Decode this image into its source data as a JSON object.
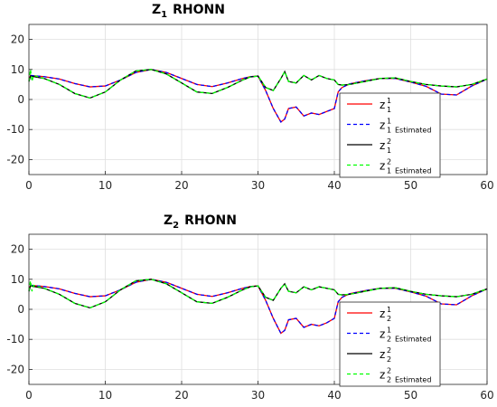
{
  "chart_data": [
    {
      "type": "line",
      "title_main": "Z",
      "title_sub": "1",
      "title_rest": "RHONN",
      "xlim": [
        0,
        60
      ],
      "ylim": [
        -25,
        25
      ],
      "xticks": [
        0,
        10,
        20,
        30,
        40,
        50,
        60
      ],
      "yticks": [
        -20,
        -10,
        0,
        10,
        20
      ],
      "grid": true,
      "legend_position": "center-right",
      "legend": [
        {
          "base": "z",
          "sup": "1",
          "sub": "1",
          "suffix": "",
          "color": "#ff0000",
          "dash": "solid"
        },
        {
          "base": "z",
          "sup": "1",
          "sub": "1",
          "suffix": "Estimated",
          "color": "#0000ff",
          "dash": "dashed"
        },
        {
          "base": "z",
          "sup": "2",
          "sub": "1",
          "suffix": "",
          "color": "#000000",
          "dash": "solid"
        },
        {
          "base": "z",
          "sup": "2",
          "sub": "1",
          "suffix": "Estimated",
          "color": "#00ff00",
          "dash": "dashed"
        }
      ],
      "series": [
        {
          "color": "#ff0000",
          "dash": "solid",
          "x": [
            0,
            0.2,
            2,
            4,
            6,
            8,
            10,
            12,
            14,
            16,
            18,
            20,
            22,
            24,
            26,
            28,
            29,
            30,
            31,
            32,
            33,
            33.5,
            34,
            35,
            36,
            37,
            38,
            39,
            40,
            40.5,
            41,
            42,
            44,
            46,
            48,
            50,
            52,
            54,
            56,
            58,
            60
          ],
          "y": [
            6,
            8,
            7.6,
            6.8,
            5.3,
            4.2,
            4.5,
            6.5,
            9,
            10,
            9,
            7,
            5,
            4.3,
            5.5,
            7,
            7.6,
            7.8,
            3,
            -3,
            -7.5,
            -6.5,
            -3,
            -2.5,
            -5.5,
            -4.5,
            -5,
            -4,
            -3,
            2.5,
            4,
            5.2,
            6.2,
            7,
            7,
            5.8,
            4.4,
            1.8,
            1.5,
            4.5,
            6.8
          ]
        },
        {
          "color": "#0000ff",
          "dash": "dashed",
          "x": [
            0,
            0.2,
            2,
            4,
            6,
            8,
            10,
            12,
            14,
            16,
            18,
            20,
            22,
            24,
            26,
            28,
            29,
            30,
            31,
            32,
            33,
            33.5,
            34,
            35,
            36,
            37,
            38,
            39,
            40,
            40.5,
            41,
            42,
            44,
            46,
            48,
            50,
            52,
            54,
            56,
            58,
            60
          ],
          "y": [
            6,
            8,
            7.6,
            6.8,
            5.3,
            4.2,
            4.5,
            6.5,
            9,
            10,
            9,
            7,
            5,
            4.3,
            5.5,
            7,
            7.6,
            7.8,
            3,
            -3,
            -7.5,
            -6.5,
            -3,
            -2.5,
            -5.5,
            -4.5,
            -5,
            -4,
            -3,
            2.5,
            4,
            5.2,
            6.2,
            7,
            7,
            5.8,
            4.4,
            1.8,
            1.5,
            4.5,
            6.8
          ]
        },
        {
          "color": "#000000",
          "dash": "solid",
          "x": [
            0,
            0.2,
            2,
            4,
            6,
            8,
            10,
            12,
            14,
            16,
            18,
            20,
            22,
            24,
            26,
            28,
            29,
            30,
            31,
            32,
            33,
            33.5,
            34,
            35,
            36,
            37,
            38,
            39,
            40,
            40.5,
            41,
            42,
            44,
            46,
            48,
            50,
            52,
            54,
            56,
            58,
            60
          ],
          "y": [
            6,
            7.8,
            7,
            5,
            2,
            0.5,
            2.5,
            6.5,
            9.5,
            10,
            8.5,
            5.5,
            2.5,
            2,
            4,
            6.5,
            7.5,
            7.8,
            4,
            3,
            7,
            9.3,
            6,
            5.5,
            8,
            6.5,
            8,
            7,
            6.5,
            5,
            4.8,
            5,
            6,
            7,
            7.2,
            6,
            5,
            4.5,
            4.2,
            5,
            6.8
          ]
        },
        {
          "color": "#00ff00",
          "dash": "dashed",
          "x": [
            0,
            0.2,
            0.4,
            0.6,
            2,
            4,
            6,
            8,
            10,
            12,
            14,
            16,
            18,
            20,
            22,
            24,
            26,
            28,
            29,
            30,
            31,
            32,
            33,
            33.5,
            34,
            35,
            36,
            37,
            38,
            39,
            40,
            40.5,
            41,
            42,
            44,
            46,
            48,
            50,
            52,
            54,
            56,
            58,
            60
          ],
          "y": [
            6,
            10,
            6,
            8,
            7,
            5,
            2,
            0.5,
            2.5,
            6.5,
            9.5,
            10,
            8.5,
            5.5,
            2.5,
            2,
            4,
            6.5,
            7.5,
            7.8,
            4,
            3,
            7,
            9.3,
            6,
            5.5,
            8,
            6.5,
            8,
            7,
            6.5,
            5,
            4.8,
            5,
            6,
            7,
            7.2,
            6,
            5,
            4.5,
            4.2,
            5,
            6.8
          ]
        }
      ]
    },
    {
      "type": "line",
      "title_main": "Z",
      "title_sub": "2",
      "title_rest": "RHONN",
      "xlim": [
        0,
        60
      ],
      "ylim": [
        -25,
        25
      ],
      "xticks": [
        0,
        10,
        20,
        30,
        40,
        50,
        60
      ],
      "yticks": [
        -20,
        -10,
        0,
        10,
        20
      ],
      "grid": true,
      "legend_position": "center-right",
      "legend": [
        {
          "base": "z",
          "sup": "1",
          "sub": "2",
          "suffix": "",
          "color": "#ff0000",
          "dash": "solid"
        },
        {
          "base": "z",
          "sup": "1",
          "sub": "2",
          "suffix": "Estimated",
          "color": "#0000ff",
          "dash": "dashed"
        },
        {
          "base": "z",
          "sup": "2",
          "sub": "2",
          "suffix": "",
          "color": "#000000",
          "dash": "solid"
        },
        {
          "base": "z",
          "sup": "2",
          "sub": "2",
          "suffix": "Estimated",
          "color": "#00ff00",
          "dash": "dashed"
        }
      ],
      "series": [
        {
          "color": "#ff0000",
          "dash": "solid",
          "x": [
            0,
            0.2,
            2,
            4,
            6,
            8,
            10,
            12,
            14,
            16,
            18,
            20,
            22,
            24,
            26,
            28,
            29,
            30,
            31,
            32,
            33,
            33.5,
            34,
            35,
            36,
            37,
            38,
            39,
            40,
            40.5,
            41,
            42,
            44,
            46,
            48,
            50,
            52,
            54,
            56,
            58,
            60
          ],
          "y": [
            6,
            8,
            7.6,
            6.8,
            5.3,
            4.2,
            4.5,
            6.5,
            9,
            10,
            9,
            7,
            5,
            4.3,
            5.5,
            7,
            7.6,
            7.8,
            3,
            -3,
            -8,
            -7,
            -3.5,
            -3,
            -6,
            -5,
            -5.5,
            -4.5,
            -3,
            2.5,
            4,
            5.2,
            6.2,
            7,
            7,
            5.8,
            4.4,
            1.8,
            1.5,
            4.5,
            6.8
          ]
        },
        {
          "color": "#0000ff",
          "dash": "dashed",
          "x": [
            0,
            0.2,
            2,
            4,
            6,
            8,
            10,
            12,
            14,
            16,
            18,
            20,
            22,
            24,
            26,
            28,
            29,
            30,
            31,
            32,
            33,
            33.5,
            34,
            35,
            36,
            37,
            38,
            39,
            40,
            40.5,
            41,
            42,
            44,
            46,
            48,
            50,
            52,
            54,
            56,
            58,
            60
          ],
          "y": [
            6,
            8,
            7.6,
            6.8,
            5.3,
            4.2,
            4.5,
            6.5,
            9,
            10,
            9,
            7,
            5,
            4.3,
            5.5,
            7,
            7.6,
            7.8,
            3,
            -3,
            -8,
            -7,
            -3.5,
            -3,
            -6,
            -5,
            -5.5,
            -4.5,
            -3,
            2.5,
            4,
            5.2,
            6.2,
            7,
            7,
            5.8,
            4.4,
            1.8,
            1.5,
            4.5,
            6.8
          ]
        },
        {
          "color": "#000000",
          "dash": "solid",
          "x": [
            0,
            0.2,
            2,
            4,
            6,
            8,
            10,
            12,
            14,
            16,
            18,
            20,
            22,
            24,
            26,
            28,
            29,
            30,
            31,
            32,
            33,
            33.5,
            34,
            35,
            36,
            37,
            38,
            39,
            40,
            40.5,
            41,
            42,
            44,
            46,
            48,
            50,
            52,
            54,
            56,
            58,
            60
          ],
          "y": [
            6,
            7.8,
            7,
            5,
            2,
            0.5,
            2.5,
            6.5,
            9.5,
            10,
            8.5,
            5.5,
            2.5,
            2,
            4,
            6.5,
            7.5,
            7.8,
            4,
            3,
            7,
            8.5,
            6,
            5.5,
            7.5,
            6.5,
            7.5,
            7,
            6.5,
            5,
            4.8,
            5,
            6,
            7,
            7.2,
            6,
            5,
            4.5,
            4.2,
            5,
            6.8
          ]
        },
        {
          "color": "#00ff00",
          "dash": "dashed",
          "x": [
            0,
            0.2,
            0.4,
            0.6,
            2,
            4,
            6,
            8,
            10,
            12,
            14,
            16,
            18,
            20,
            22,
            24,
            26,
            28,
            29,
            30,
            31,
            32,
            33,
            33.5,
            34,
            35,
            36,
            37,
            38,
            39,
            40,
            40.5,
            41,
            42,
            44,
            46,
            48,
            50,
            52,
            54,
            56,
            58,
            60
          ],
          "y": [
            6,
            9.5,
            6,
            8,
            7,
            5,
            2,
            0.5,
            2.5,
            6.5,
            9.5,
            10,
            8.5,
            5.5,
            2.5,
            2,
            4,
            6.5,
            7.5,
            7.8,
            4,
            3,
            7,
            8.5,
            6,
            5.5,
            7.5,
            6.5,
            7.5,
            7,
            6.5,
            5,
            4.8,
            5,
            6,
            7,
            7.2,
            6,
            5,
            4.5,
            4.2,
            5,
            6.8
          ]
        }
      ]
    }
  ]
}
